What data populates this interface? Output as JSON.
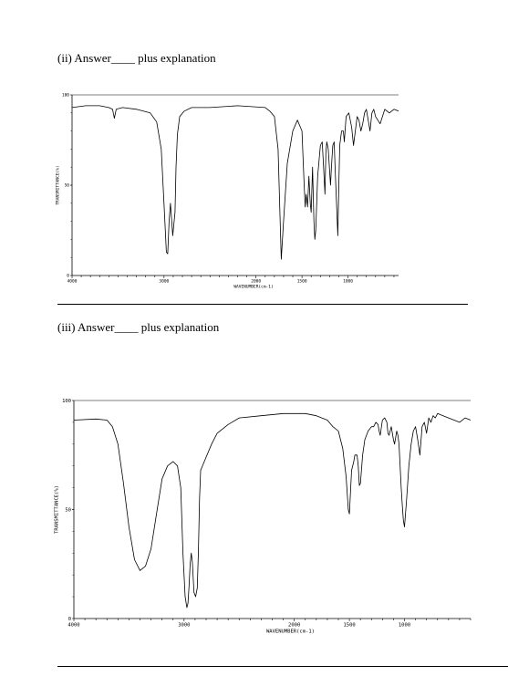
{
  "questions": [
    {
      "heading": "(ii) Answer____ plus explanation"
    },
    {
      "heading": "(iii) Answer____ plus explanation"
    }
  ],
  "chart_data": [
    {
      "type": "line",
      "title": "",
      "xlabel": "WAVENUMBER(cm-1)",
      "ylabel": "TRANSMITTANCE(%)",
      "xlim": [
        4000,
        450
      ],
      "ylim": [
        0,
        100
      ],
      "x_ticks": [
        {
          "value": 4000,
          "label": "4000"
        },
        {
          "value": 3000,
          "label": "3000"
        },
        {
          "value": 2000,
          "label": "2000"
        },
        {
          "value": 1500,
          "label": "1500"
        },
        {
          "value": 1000,
          "label": "1000"
        }
      ],
      "y_ticks": [
        {
          "value": 100,
          "label": "100"
        },
        {
          "value": 50,
          "label": "50"
        },
        {
          "value": 0,
          "label": "0"
        }
      ],
      "grid": false,
      "series": [
        {
          "x": [
            4000,
            3850,
            3700,
            3600,
            3560,
            3540,
            3520,
            3450,
            3300,
            3150,
            3080,
            3030,
            3000,
            2975,
            2960,
            2945,
            2930,
            2905,
            2880,
            2870,
            2855,
            2830,
            2780,
            2700,
            2500,
            2200,
            1900,
            1850,
            1800,
            1760,
            1740,
            1725,
            1700,
            1660,
            1600,
            1550,
            1500,
            1480,
            1465,
            1455,
            1440,
            1425,
            1410,
            1400,
            1385,
            1370,
            1360,
            1350,
            1330,
            1300,
            1280,
            1265,
            1250,
            1240,
            1230,
            1215,
            1200,
            1190,
            1180,
            1165,
            1150,
            1140,
            1110,
            1100,
            1090,
            1070,
            1050,
            1040,
            1020,
            990,
            960,
            940,
            920,
            900,
            880,
            860,
            840,
            820,
            800,
            780,
            760,
            740,
            720,
            700,
            650,
            600,
            550,
            500,
            450
          ],
          "y": [
            93,
            94,
            94,
            93,
            92,
            87,
            92,
            93,
            92,
            90,
            85,
            70,
            40,
            13,
            12,
            30,
            40,
            22,
            35,
            60,
            78,
            88,
            91,
            93,
            93,
            94,
            93,
            91,
            88,
            70,
            35,
            9,
            30,
            62,
            80,
            86,
            80,
            55,
            38,
            45,
            38,
            55,
            40,
            35,
            60,
            30,
            20,
            25,
            55,
            72,
            74,
            60,
            45,
            68,
            74,
            70,
            58,
            50,
            60,
            72,
            74,
            60,
            22,
            50,
            72,
            80,
            80,
            74,
            88,
            90,
            82,
            72,
            80,
            88,
            86,
            80,
            84,
            90,
            92,
            86,
            80,
            90,
            92,
            88,
            84,
            92,
            90,
            92,
            91
          ]
        }
      ]
    },
    {
      "type": "line",
      "title": "",
      "xlabel": "WAVENUMBER(cm-1)",
      "ylabel": "TRANSMITTANCE(%)",
      "xlim": [
        4000,
        400
      ],
      "ylim": [
        0,
        100
      ],
      "x_ticks": [
        {
          "value": 4000,
          "label": "4000"
        },
        {
          "value": 3000,
          "label": "3000"
        },
        {
          "value": 2000,
          "label": "2000"
        },
        {
          "value": 1500,
          "label": "1500"
        },
        {
          "value": 1000,
          "label": "1000"
        }
      ],
      "y_ticks": [
        {
          "value": 100,
          "label": "100"
        },
        {
          "value": 50,
          "label": "50"
        },
        {
          "value": 0,
          "label": "0"
        }
      ],
      "grid": false,
      "series": [
        {
          "x": [
            4000,
            3800,
            3700,
            3650,
            3600,
            3550,
            3500,
            3450,
            3400,
            3350,
            3300,
            3250,
            3200,
            3150,
            3100,
            3060,
            3030,
            3010,
            2990,
            2975,
            2965,
            2955,
            2945,
            2935,
            2925,
            2910,
            2895,
            2880,
            2870,
            2860,
            2850,
            2800,
            2750,
            2700,
            2600,
            2500,
            2300,
            2100,
            1900,
            1800,
            1700,
            1650,
            1600,
            1560,
            1530,
            1510,
            1500,
            1490,
            1480,
            1460,
            1450,
            1430,
            1420,
            1410,
            1400,
            1380,
            1360,
            1330,
            1300,
            1280,
            1260,
            1240,
            1230,
            1220,
            1200,
            1180,
            1160,
            1150,
            1140,
            1120,
            1100,
            1090,
            1070,
            1060,
            1050,
            1040,
            1030,
            1020,
            1010,
            1000,
            980,
            960,
            940,
            920,
            900,
            880,
            860,
            840,
            820,
            800,
            780,
            760,
            740,
            720,
            700,
            650,
            600,
            550,
            500,
            450,
            400
          ],
          "y": [
            91,
            91.5,
            91,
            88,
            80,
            62,
            42,
            27,
            22,
            24,
            32,
            48,
            64,
            70,
            72,
            70,
            60,
            30,
            10,
            5,
            7,
            15,
            25,
            30,
            26,
            12,
            10,
            14,
            30,
            55,
            68,
            74,
            80,
            85,
            89,
            92,
            93,
            94,
            94,
            93,
            91,
            88,
            86,
            78,
            65,
            50,
            48,
            58,
            68,
            72,
            75,
            75,
            70,
            61,
            62,
            75,
            82,
            86,
            88,
            88,
            90,
            89,
            86,
            84,
            91,
            92,
            90,
            85,
            84,
            88,
            82,
            80,
            86,
            84,
            80,
            70,
            60,
            52,
            45,
            42,
            55,
            70,
            80,
            86,
            88,
            82,
            75,
            88,
            90,
            85,
            92,
            90,
            93,
            92,
            94,
            93,
            92,
            91,
            90,
            92,
            91
          ]
        }
      ]
    }
  ]
}
